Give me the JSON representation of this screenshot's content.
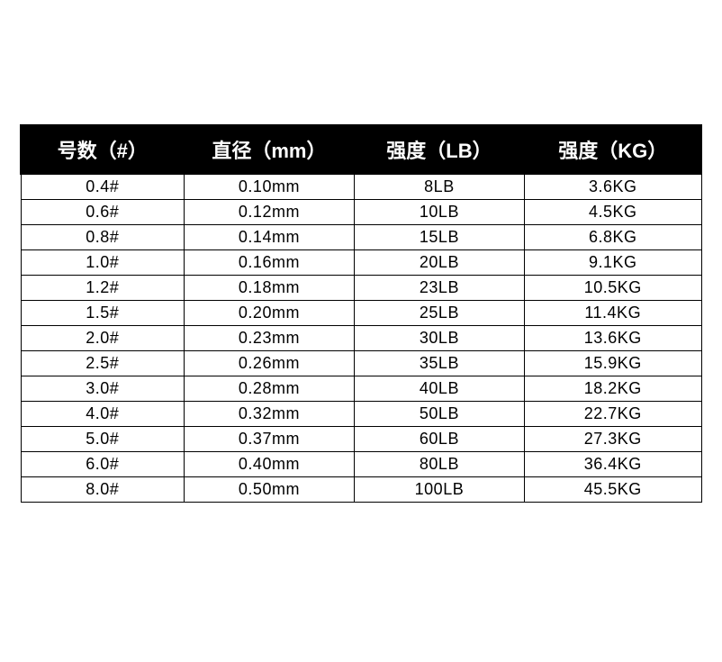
{
  "table": {
    "type": "table",
    "background_color": "#ffffff",
    "header_bg": "#000000",
    "header_fg": "#ffffff",
    "border_color": "#000000",
    "header_fontsize": 22,
    "cell_fontsize": 18,
    "columns": [
      {
        "label": "号数（#）"
      },
      {
        "label": "直径（mm）"
      },
      {
        "label": "强度（LB）"
      },
      {
        "label": "强度（KG）"
      }
    ],
    "rows": [
      {
        "num": "0.4#",
        "dia": "0.10mm",
        "lb": "8LB",
        "kg": "3.6KG"
      },
      {
        "num": "0.6#",
        "dia": "0.12mm",
        "lb": "10LB",
        "kg": "4.5KG"
      },
      {
        "num": "0.8#",
        "dia": "0.14mm",
        "lb": "15LB",
        "kg": "6.8KG"
      },
      {
        "num": "1.0#",
        "dia": "0.16mm",
        "lb": "20LB",
        "kg": "9.1KG"
      },
      {
        "num": "1.2#",
        "dia": "0.18mm",
        "lb": "23LB",
        "kg": "10.5KG"
      },
      {
        "num": "1.5#",
        "dia": "0.20mm",
        "lb": "25LB",
        "kg": "11.4KG"
      },
      {
        "num": "2.0#",
        "dia": "0.23mm",
        "lb": "30LB",
        "kg": "13.6KG"
      },
      {
        "num": "2.5#",
        "dia": "0.26mm",
        "lb": "35LB",
        "kg": "15.9KG"
      },
      {
        "num": "3.0#",
        "dia": "0.28mm",
        "lb": "40LB",
        "kg": "18.2KG"
      },
      {
        "num": "4.0#",
        "dia": "0.32mm",
        "lb": "50LB",
        "kg": "22.7KG"
      },
      {
        "num": "5.0#",
        "dia": "0.37mm",
        "lb": "60LB",
        "kg": "27.3KG"
      },
      {
        "num": "6.0#",
        "dia": "0.40mm",
        "lb": "80LB",
        "kg": "36.4KG"
      },
      {
        "num": "8.0#",
        "dia": "0.50mm",
        "lb": "100LB",
        "kg": "45.5KG"
      }
    ]
  }
}
